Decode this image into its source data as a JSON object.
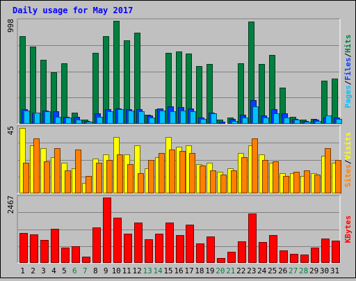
{
  "chart_data": {
    "type": "bar",
    "title": "Daily usage for May 2017",
    "categories": [
      "1",
      "2",
      "3",
      "4",
      "5",
      "6",
      "7",
      "8",
      "9",
      "10",
      "11",
      "12",
      "13",
      "14",
      "15",
      "16",
      "17",
      "18",
      "19",
      "20",
      "21",
      "22",
      "23",
      "24",
      "25",
      "26",
      "27",
      "28",
      "29",
      "30",
      "31"
    ],
    "weekend_days": [
      6,
      7,
      13,
      14,
      20,
      21,
      27,
      28
    ],
    "panels": [
      {
        "id": "hits-files-pages",
        "max_label": "998",
        "ymax": 998,
        "series": [
          {
            "name": "Hits",
            "color": "#008040",
            "values": [
              850,
              750,
              620,
              500,
              590,
              110,
              40,
              690,
              850,
              998,
              810,
              880,
              90,
              140,
              690,
              700,
              680,
              560,
              580,
              40,
              60,
              590,
              990,
              580,
              670,
              350,
              70,
              40,
              50,
              420,
              440
            ]
          },
          {
            "name": "Files",
            "color": "#0040ff",
            "values": [
              140,
              110,
              130,
              120,
              70,
              70,
              30,
              100,
              140,
              150,
              140,
              140,
              80,
              150,
              170,
              160,
              150,
              60,
              110,
              20,
              50,
              90,
              230,
              80,
              140,
              100,
              50,
              30,
              40,
              60,
              60
            ]
          },
          {
            "name": "Pages",
            "color": "#00c0ff",
            "values": [
              130,
              110,
              120,
              70,
              60,
              40,
              20,
              70,
              120,
              140,
              130,
              120,
              60,
              130,
              120,
              130,
              120,
              50,
              100,
              10,
              30,
              60,
              170,
              60,
              100,
              60,
              40,
              20,
              30,
              80,
              50
            ]
          }
        ],
        "axis_legend": [
          "Pages",
          "Files",
          "Hits"
        ]
      },
      {
        "id": "visits-sites",
        "max_label": "45",
        "ymax": 45,
        "series": [
          {
            "name": "Visits",
            "color": "#ffff00",
            "values": [
              45,
              33,
              31,
              25,
              21,
              17,
              7,
              24,
              27,
              39,
              27,
              33,
              17,
              25,
              39,
              32,
              33,
              20,
              21,
              15,
              17,
              28,
              33,
              27,
              21,
              14,
              14,
              12,
              14,
              26,
              21
            ]
          },
          {
            "name": "Sites",
            "color": "#ff8000",
            "values": [
              21,
              38,
              22,
              31,
              16,
              30,
              12,
              21,
              23,
              27,
              20,
              14,
              23,
              28,
              30,
              29,
              28,
              19,
              16,
              13,
              16,
              25,
              38,
              23,
              22,
              12,
              15,
              16,
              13,
              31,
              23
            ]
          }
        ],
        "axis_legend": [
          "Sites",
          "Visits"
        ]
      },
      {
        "id": "kbytes",
        "max_label": "2467",
        "ymax": 2467,
        "series": [
          {
            "name": "KBytes",
            "color": "#ff0000",
            "values": [
              1140,
              1080,
              870,
              1290,
              590,
              620,
              240,
              1330,
              2470,
              1700,
              1110,
              1510,
              880,
              1100,
              1510,
              1050,
              1440,
              740,
              1000,
              180,
              410,
              820,
              1860,
              790,
              1050,
              470,
              340,
              310,
              580,
              920,
              850
            ]
          }
        ],
        "axis_legend": [
          "KBytes"
        ]
      }
    ]
  }
}
